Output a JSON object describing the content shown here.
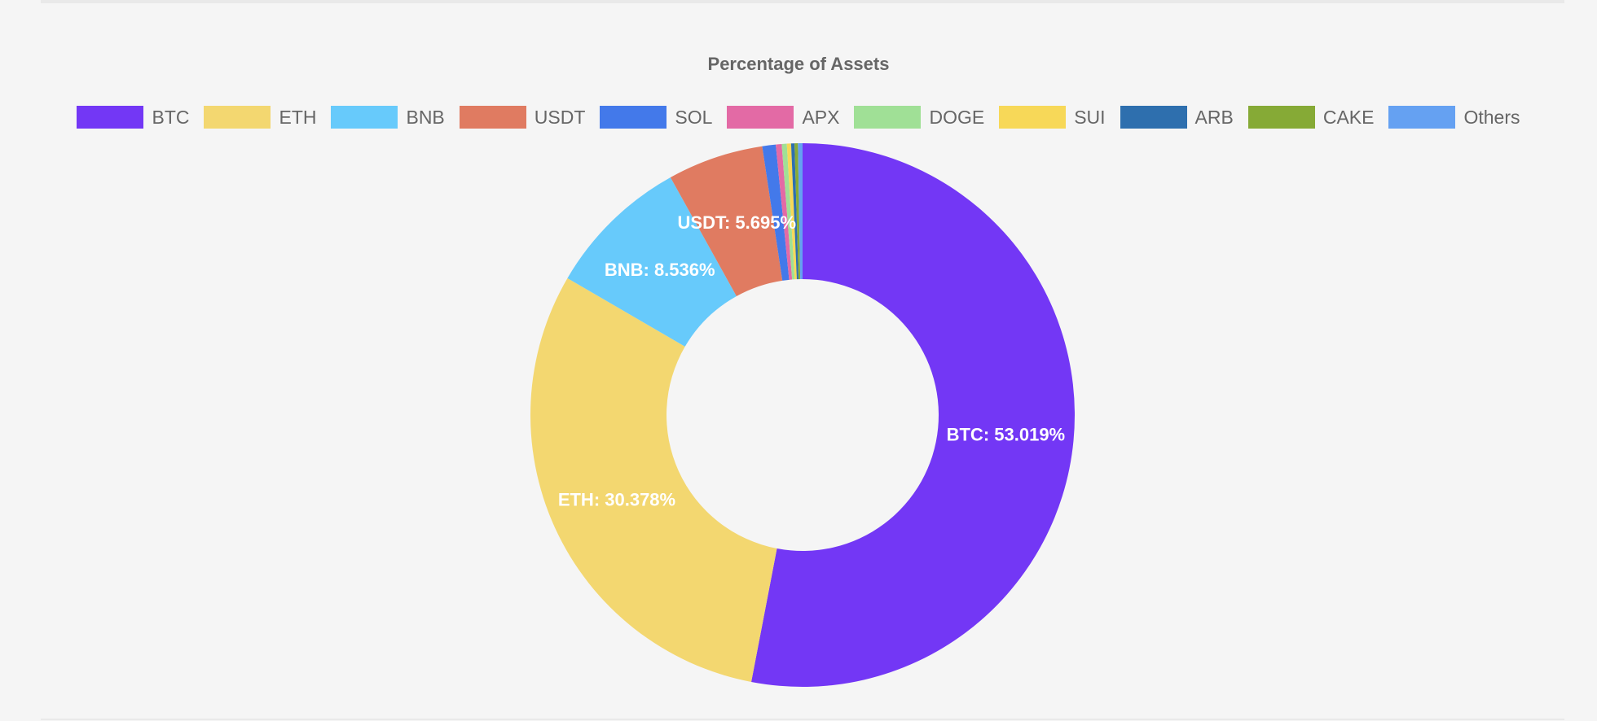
{
  "chart_data": {
    "type": "pie",
    "variant": "doughnut",
    "title": "Percentage of Assets",
    "legend_position": "top",
    "categories": [
      "BTC",
      "ETH",
      "BNB",
      "USDT",
      "SOL",
      "APX",
      "DOGE",
      "SUI",
      "ARB",
      "CAKE",
      "Others"
    ],
    "values": [
      53.019,
      30.378,
      8.536,
      5.695,
      0.8,
      0.35,
      0.3,
      0.25,
      0.2,
      0.2,
      0.272
    ],
    "colors": [
      "#7337f5",
      "#f3d770",
      "#67cafb",
      "#e07b61",
      "#4379ea",
      "#e36aa5",
      "#a0e096",
      "#f7d858",
      "#2e6fae",
      "#86aa36",
      "#65a1f2"
    ],
    "data_labels": [
      "BTC: 53.019%",
      "ETH: 30.378%",
      "BNB: 8.536%",
      "USDT: 5.695%",
      "",
      "",
      "",
      "",
      "",
      "",
      ""
    ]
  }
}
